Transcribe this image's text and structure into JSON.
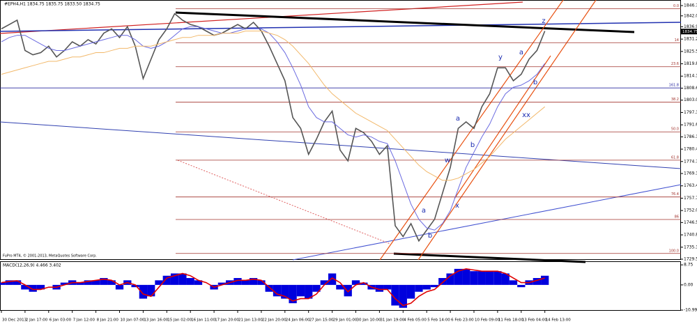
{
  "chart_data": [
    {
      "type": "line",
      "title": "#EPH4,H1  1834.75 1835.75 1833.50 1834.75",
      "footer": "FuPro MT4, © 2001-2013, MetaQuotes Software Corp.",
      "last_price": 1834.75,
      "categories": [
        "30 Dec 2013",
        null,
        null,
        "2 Jan 17:00",
        null,
        null,
        "6 Jan 03:00",
        null,
        null,
        "7 Jan 12:00",
        null,
        null,
        "8 Jan 21:00",
        null,
        null,
        "10 Jan 07:00",
        null,
        null,
        "13 Jan 16:00",
        null,
        null,
        "15 Jan 02:00",
        null,
        null,
        "16 Jan 11:00",
        null,
        null,
        "17 Jan 20:00",
        null,
        null,
        "21 Jan 13:00",
        null,
        null,
        "22 Jan 20:00",
        null,
        null,
        "24 Jan 06:00",
        null,
        null,
        "27 Jan 15:00",
        null,
        null,
        "29 Jan 01:00",
        null,
        null,
        "30 Jan 10:00",
        null,
        null,
        "31 Jan 19:00",
        null,
        null,
        "4 Feb 05:00",
        null,
        null,
        "5 Feb 14:00",
        null,
        null,
        "6 Feb 23:00",
        null,
        null,
        "10 Feb 09:00",
        null,
        null,
        "11 Feb 18:00",
        null,
        null,
        "13 Feb 04:00",
        null,
        null,
        "14 Feb 13:00"
      ],
      "series": [
        {
          "color": "#555555",
          "values": [
            1836,
            1838,
            1840,
            1826,
            1824,
            1825,
            1828,
            1823,
            1826,
            1830,
            1828,
            1831,
            1829,
            1834,
            1836,
            1832,
            1837,
            1828,
            1813,
            1822,
            1831,
            1836,
            1843,
            1840,
            1838,
            1837,
            1835,
            1833,
            1834,
            1836,
            1838,
            1836,
            1839,
            1835,
            1828,
            1820,
            1812,
            1795,
            1790,
            1778,
            1785,
            1793,
            1798,
            1780,
            1775,
            1790,
            1788,
            1784,
            1778,
            1782,
            1745,
            1740,
            1746,
            1738,
            1743,
            1748,
            1760,
            1772,
            1790,
            1793,
            1790,
            1800,
            1806,
            1818,
            1818,
            1812,
            1815,
            1822,
            1826,
            1835
          ]
        },
        {
          "color": "#6a6ae0",
          "values": [
            1830,
            1832,
            1833,
            1833,
            1831,
            1829,
            1827,
            1826,
            1826,
            1827,
            1828,
            1829,
            1830,
            1831,
            1832,
            1833,
            1833,
            1831,
            1828,
            1827,
            1828,
            1830,
            1833,
            1836,
            1837,
            1837,
            1836,
            1835,
            1834,
            1834,
            1835,
            1836,
            1836,
            1836,
            1834,
            1830,
            1825,
            1818,
            1810,
            1800,
            1795,
            1793,
            1793,
            1790,
            1787,
            1786,
            1787,
            1786,
            1784,
            1783,
            1775,
            1765,
            1755,
            1748,
            1744,
            1743,
            1746,
            1752,
            1762,
            1772,
            1779,
            1786,
            1792,
            1800,
            1806,
            1809,
            1810,
            1812,
            1815,
            1820
          ]
        },
        {
          "color": "#f2b86a",
          "values": [
            1815,
            1816,
            1817,
            1818,
            1819,
            1820,
            1821,
            1821,
            1822,
            1823,
            1823,
            1824,
            1825,
            1825,
            1826,
            1827,
            1827,
            1828,
            1828,
            1828,
            1829,
            1830,
            1831,
            1832,
            1832,
            1833,
            1833,
            1833,
            1834,
            1834,
            1834,
            1835,
            1835,
            1835,
            1834,
            1833,
            1831,
            1828,
            1824,
            1820,
            1815,
            1810,
            1806,
            1803,
            1800,
            1797,
            1795,
            1793,
            1791,
            1789,
            1785,
            1781,
            1777,
            1773,
            1770,
            1768,
            1766,
            1766,
            1767,
            1769,
            1771,
            1774,
            1777,
            1781,
            1785,
            1788,
            1791,
            1794,
            1797,
            1800
          ]
        }
      ],
      "ylim": [
        1729.55,
        1846.75
      ],
      "yticks": [
        1846.75,
        {
          "value": 1842,
          "label": "1842.00"
        },
        1836.95,
        1831.25,
        1825.55,
        1819.85,
        1814.15,
        {
          "value": 1808.6,
          "label": "1808.60"
        },
        1803.05,
        1797.35,
        1791.65,
        {
          "value": 1786.1,
          "label": "1786.10"
        },
        {
          "value": 1780.4,
          "label": "1780.40"
        },
        {
          "value": 1774.7,
          "label": "1774.70"
        },
        1769.15,
        1763.45,
        1757.75,
        1752.05,
        {
          "value": 1746.5,
          "label": "1746.50"
        },
        {
          "value": 1740.8,
          "label": "1740.80"
        },
        {
          "value": 1735.1,
          "label": "1735.10"
        },
        1729.55
      ],
      "levels": [
        {
          "value": 1845.3,
          "label": "0.0",
          "color": "#a0302a"
        },
        {
          "value": 1829.6,
          "label": "14",
          "color": "#a0302a"
        },
        {
          "value": 1818.5,
          "label": "23.6",
          "color": "#a0302a"
        },
        {
          "value": 1802.1,
          "label": "38.2",
          "color": "#a0302a"
        },
        {
          "value": 1788.4,
          "label": "50.0",
          "color": "#a0302a"
        },
        {
          "value": 1775.3,
          "label": "61.8",
          "color": "#a0302a"
        },
        {
          "value": 1758.3,
          "label": "76.4",
          "color": "#a0302a"
        },
        {
          "value": 1747.9,
          "label": "86",
          "color": "#a0302a"
        },
        {
          "value": 1732.2,
          "label": "100.0",
          "color": "#a0302a"
        },
        {
          "value": 1808.7,
          "label": "161.8",
          "color": "#2a2aa0"
        }
      ],
      "annotations": [
        "z",
        "y",
        "a",
        "b",
        "xx",
        "a",
        "b",
        "w",
        "x",
        "a",
        "b"
      ]
    },
    {
      "type": "bar",
      "title": "MACD(12,26,9) 4.466 3.402",
      "series": [
        {
          "color": "#0000dd",
          "values": [
            1,
            2,
            2,
            -2,
            -3,
            -2,
            0,
            -2,
            1,
            2,
            1,
            2,
            2,
            3,
            2,
            -2,
            2,
            -1,
            -6,
            -5,
            2,
            4,
            5,
            5,
            3,
            2,
            0,
            -2,
            1,
            2,
            3,
            2,
            3,
            2,
            -3,
            -5,
            -6,
            -8,
            -5,
            -6,
            -3,
            2,
            5,
            -2,
            -5,
            2,
            1,
            -2,
            -3,
            -2,
            -9,
            -10,
            -6,
            -3,
            -2,
            -1,
            3,
            5,
            7,
            7,
            6,
            6,
            6,
            6,
            5,
            2,
            -1,
            2,
            3,
            4
          ]
        },
        {
          "color": "#e00000",
          "values": [
            1,
            1.5,
            1.8,
            0,
            -2,
            -2,
            -1,
            -1,
            0,
            1,
            1,
            1.5,
            2,
            2.5,
            2,
            0,
            1,
            0,
            -4,
            -5,
            -1,
            3,
            4,
            5,
            4,
            2,
            1,
            -1,
            0,
            1,
            2,
            2,
            2.5,
            2,
            -1,
            -4,
            -5,
            -7,
            -6,
            -6,
            -4,
            0,
            3,
            1,
            -3,
            0,
            1,
            -1,
            -2,
            -2,
            -6,
            -9,
            -8,
            -5,
            -3,
            -2,
            1,
            4,
            6,
            7,
            6.5,
            6,
            6,
            6,
            5,
            3,
            1,
            1,
            2,
            3
          ]
        }
      ],
      "ylim": [
        -10.99,
        9.7
      ],
      "yticks": [
        8.75,
        {
          "value": 0,
          "label": "0.00"
        },
        -10.99
      ]
    }
  ]
}
